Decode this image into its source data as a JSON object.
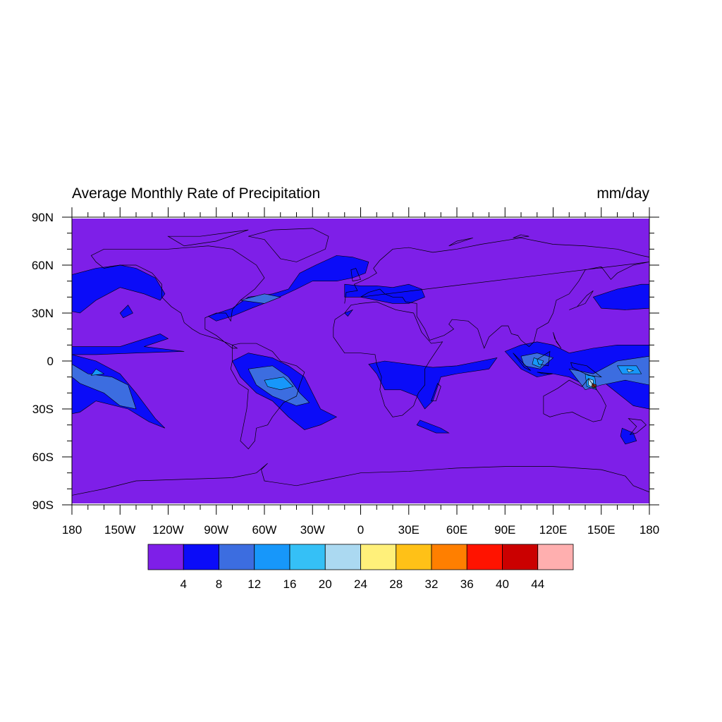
{
  "title": "Average Monthly Rate of Precipitation",
  "units": "mm/day",
  "map": {
    "projection": "cylindrical equidistant",
    "lon_range": [
      -180,
      180
    ],
    "lat_range": [
      -90,
      90
    ],
    "lon_labels": [
      "180",
      "150W",
      "120W",
      "90W",
      "60W",
      "30W",
      "0",
      "30E",
      "60E",
      "90E",
      "120E",
      "150E",
      "180"
    ],
    "lat_labels": [
      "90N",
      "60N",
      "30N",
      "0",
      "30S",
      "60S",
      "90S"
    ],
    "background_color": "#7e1fe8",
    "coastlines": true
  },
  "colorbar": {
    "levels": [
      "4",
      "8",
      "12",
      "16",
      "20",
      "24",
      "28",
      "32",
      "36",
      "40",
      "44"
    ],
    "colors": [
      "#7e1fe8",
      "#0b0cf8",
      "#3c6de0",
      "#1797fa",
      "#35c0f6",
      "#abd9f1",
      "#fff07a",
      "#ffc117",
      "#ff7f00",
      "#ff1300",
      "#cb0000",
      "#ffafaf"
    ]
  }
}
